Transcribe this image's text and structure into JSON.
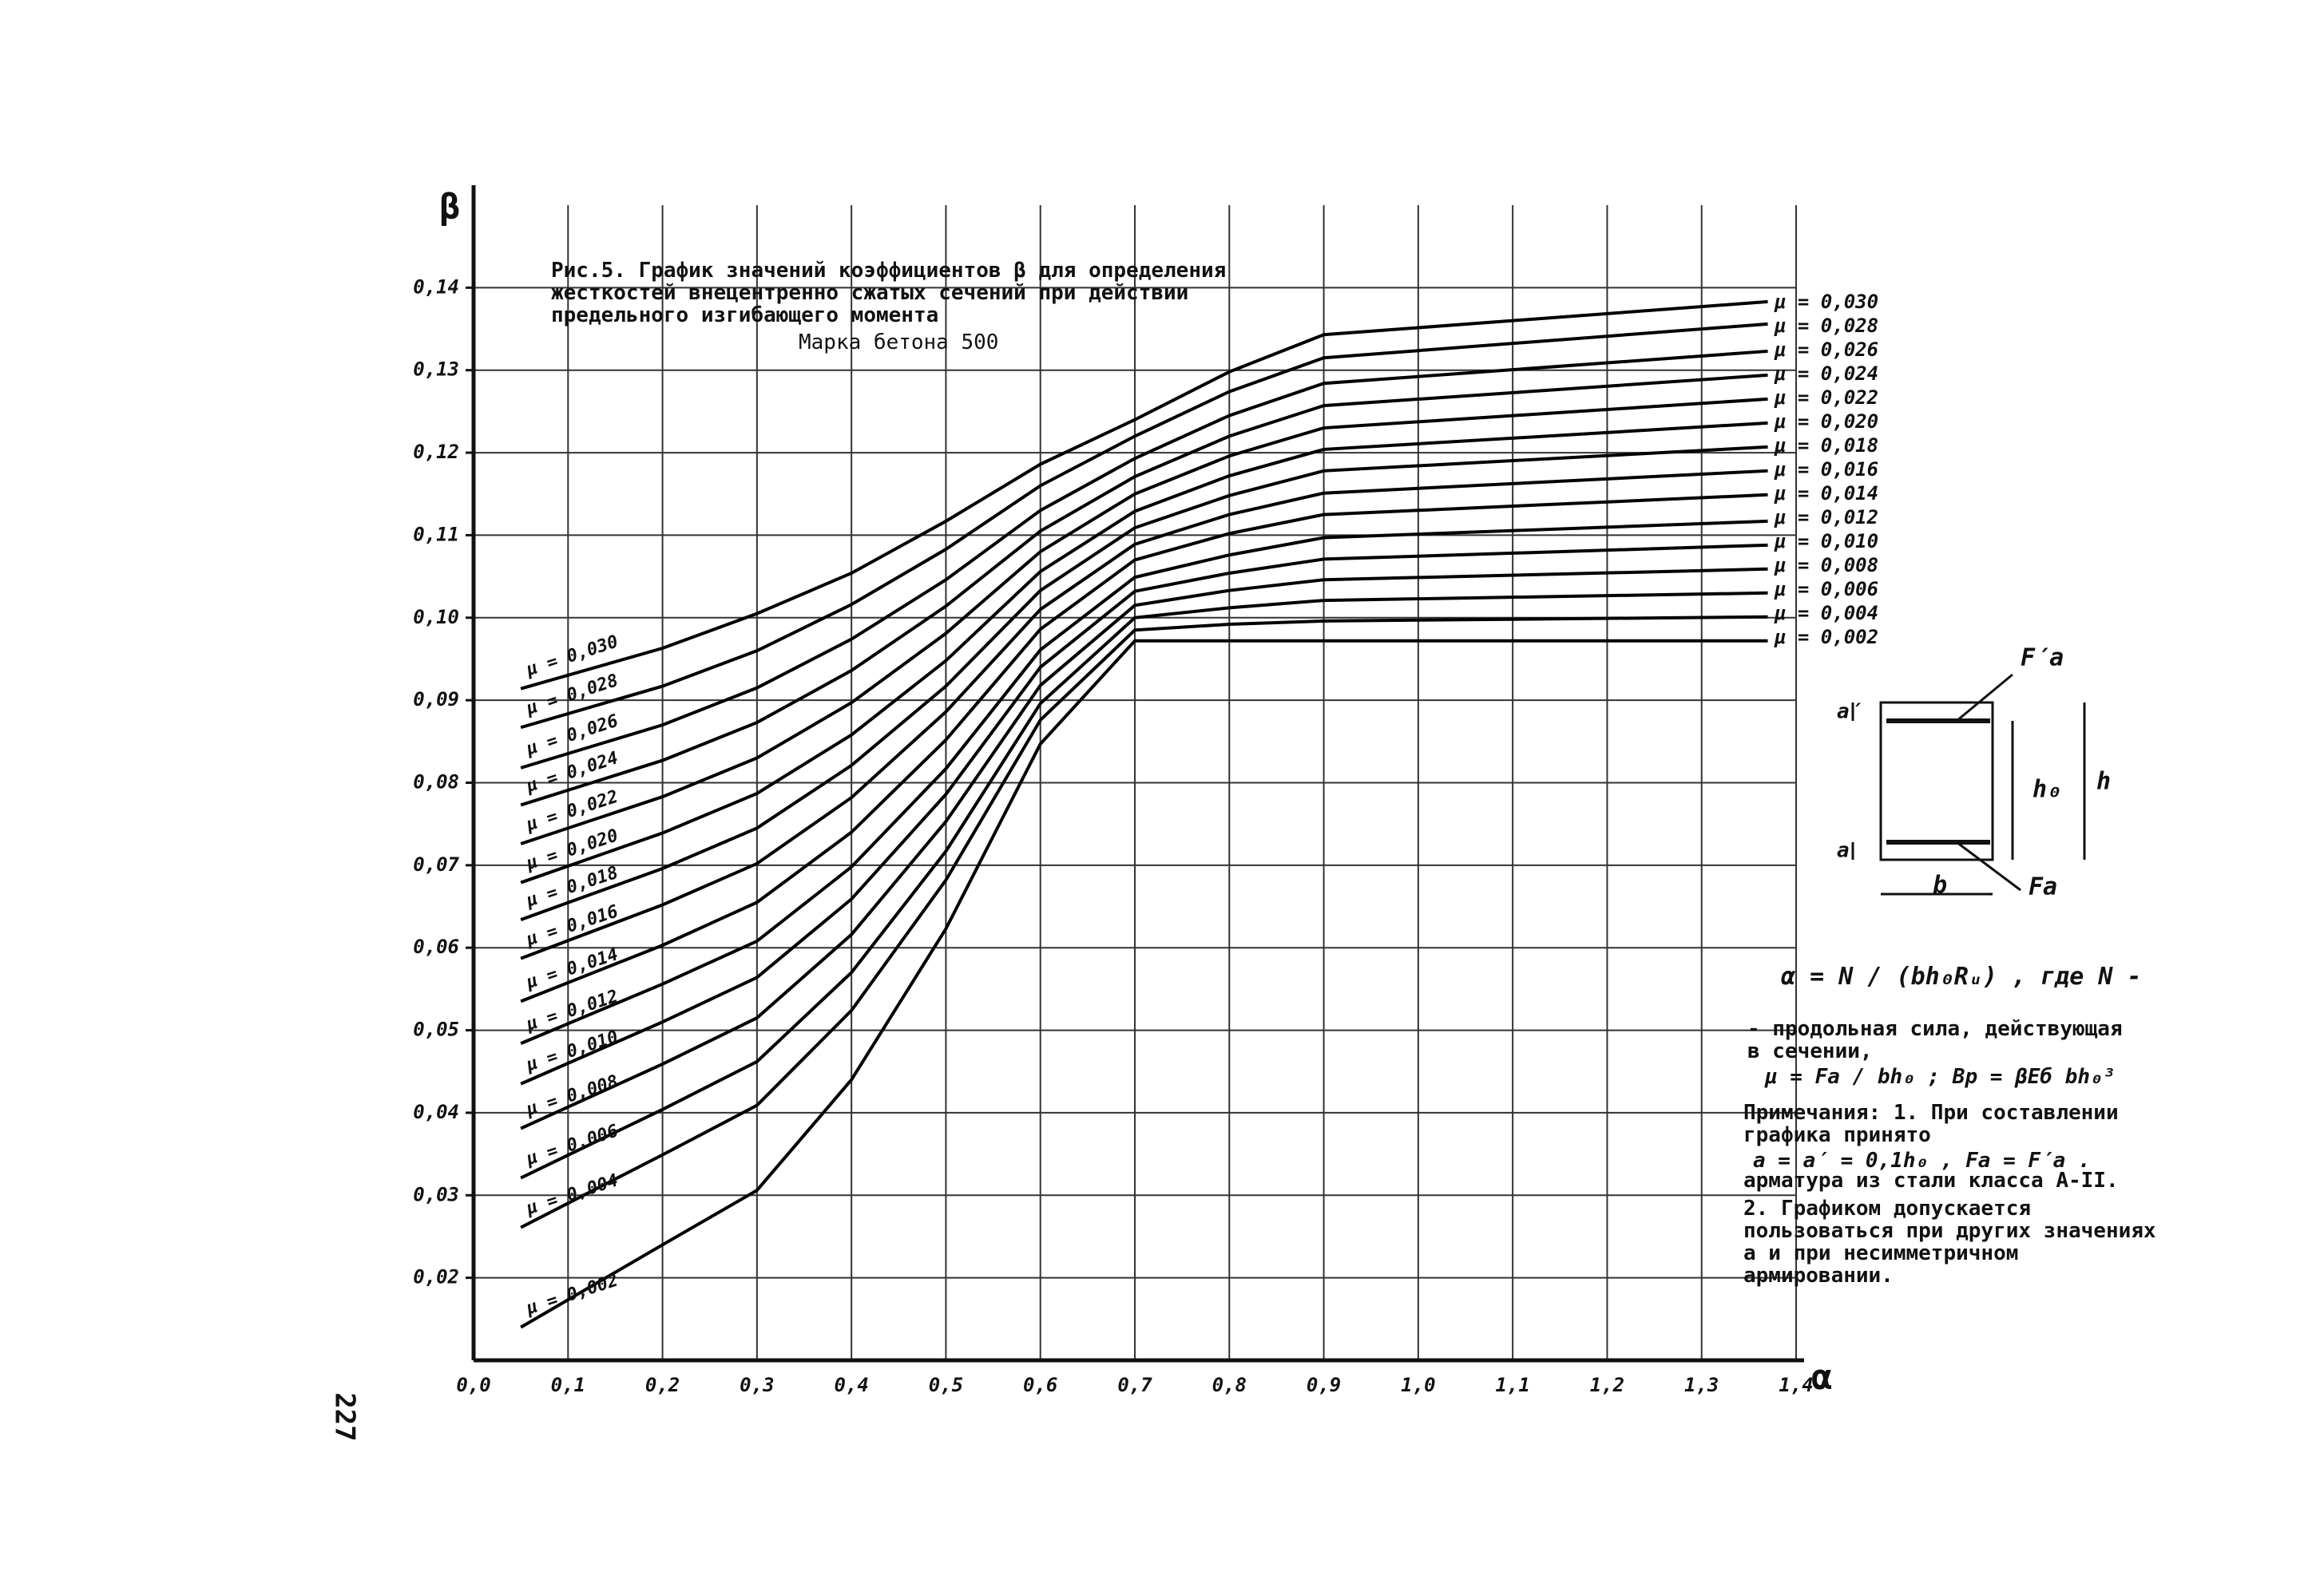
{
  "chart_data": {
    "type": "line",
    "title": "Рис.5. График значений коэффициентов β для определения жесткостей внецентренно сжатых сечений при действии предельного изгибающего момента",
    "subtitle": "Марка бетона 500",
    "xlabel": "α",
    "ylabel": "β",
    "color": "#000000",
    "grid": true,
    "xlim": [
      0,
      1.4
    ],
    "ylim": [
      0.01,
      0.15
    ],
    "xticks": [
      {
        "value": 0,
        "label": "0,0"
      },
      {
        "value": 0.1,
        "label": "0,1"
      },
      {
        "value": 0.2,
        "label": "0,2"
      },
      {
        "value": 0.3,
        "label": "0,3"
      },
      {
        "value": 0.4,
        "label": "0,4"
      },
      {
        "value": 0.5,
        "label": "0,5"
      },
      {
        "value": 0.6,
        "label": "0,6"
      },
      {
        "value": 0.7,
        "label": "0,7"
      },
      {
        "value": 0.8,
        "label": "0,8"
      },
      {
        "value": 0.9,
        "label": "0,9"
      },
      {
        "value": 1,
        "label": "1,0"
      },
      {
        "value": 1.1,
        "label": "1,1"
      },
      {
        "value": 1.2,
        "label": "1,2"
      },
      {
        "value": 1.3,
        "label": "1,3"
      },
      {
        "value": 1.4,
        "label": "1,4"
      }
    ],
    "yticks": [
      {
        "value": 0.02,
        "label": "0,02"
      },
      {
        "value": 0.03,
        "label": "0,03"
      },
      {
        "value": 0.04,
        "label": "0,04"
      },
      {
        "value": 0.05,
        "label": "0,05"
      },
      {
        "value": 0.06,
        "label": "0,06"
      },
      {
        "value": 0.07,
        "label": "0,07"
      },
      {
        "value": 0.08,
        "label": "0,08"
      },
      {
        "value": 0.09,
        "label": "0,09"
      },
      {
        "value": 0.1,
        "label": "0,10"
      },
      {
        "value": 0.11,
        "label": "0,11"
      },
      {
        "value": 0.12,
        "label": "0,12"
      },
      {
        "value": 0.13,
        "label": "0,13"
      },
      {
        "value": 0.14,
        "label": "0,14"
      }
    ],
    "x": [
      0.05,
      0.2,
      0.3,
      0.4,
      0.5,
      0.6,
      0.7,
      0.8,
      0.9,
      1.37
    ],
    "series": [
      {
        "name": "μ = 0,002",
        "values": [
          0.014,
          0.024,
          0.0306,
          0.044,
          0.0623,
          0.0847,
          0.0972,
          0.0972,
          0.0972,
          0.0972
        ]
      },
      {
        "name": "μ = 0,004",
        "values": [
          0.0261,
          0.0349,
          0.0409,
          0.0524,
          0.0682,
          0.0876,
          0.0985,
          0.0992,
          0.0996,
          0.1001
        ]
      },
      {
        "name": "μ = 0,006",
        "values": [
          0.0321,
          0.0404,
          0.0462,
          0.057,
          0.0717,
          0.0896,
          0.1,
          0.1012,
          0.1021,
          0.103
        ]
      },
      {
        "name": "μ = 0,008",
        "values": [
          0.0381,
          0.0459,
          0.0515,
          0.0616,
          0.0753,
          0.0918,
          0.1015,
          0.1033,
          0.1046,
          0.1059
        ]
      },
      {
        "name": "μ = 0,010",
        "values": [
          0.0435,
          0.051,
          0.0564,
          0.0659,
          0.0786,
          0.094,
          0.1032,
          0.1054,
          0.1071,
          0.1088
        ]
      },
      {
        "name": "μ = 0,012",
        "values": [
          0.0484,
          0.0556,
          0.0608,
          0.0698,
          0.0817,
          0.0961,
          0.1049,
          0.1076,
          0.1097,
          0.1117
        ]
      },
      {
        "name": "μ = 0,014",
        "values": [
          0.0535,
          0.0603,
          0.0655,
          0.074,
          0.0852,
          0.0986,
          0.107,
          0.1102,
          0.1125,
          0.1149
        ]
      },
      {
        "name": "μ = 0,016",
        "values": [
          0.0587,
          0.0652,
          0.0702,
          0.0782,
          0.0886,
          0.101,
          0.1089,
          0.1125,
          0.1151,
          0.1178
        ]
      },
      {
        "name": "μ = 0,018",
        "values": [
          0.0634,
          0.0696,
          0.0745,
          0.0821,
          0.0917,
          0.1033,
          0.1109,
          0.1148,
          0.1178,
          0.1207
        ]
      },
      {
        "name": "μ = 0,020",
        "values": [
          0.0679,
          0.0739,
          0.0787,
          0.0858,
          0.0948,
          0.1056,
          0.1129,
          0.1172,
          0.1204,
          0.1236
        ]
      },
      {
        "name": "μ = 0,022",
        "values": [
          0.0726,
          0.0783,
          0.083,
          0.0897,
          0.0981,
          0.108,
          0.115,
          0.1196,
          0.123,
          0.1265
        ]
      },
      {
        "name": "μ = 0,024",
        "values": [
          0.0773,
          0.0827,
          0.0873,
          0.0936,
          0.1014,
          0.1105,
          0.1171,
          0.122,
          0.1257,
          0.1294
        ]
      },
      {
        "name": "μ = 0,026",
        "values": [
          0.0818,
          0.087,
          0.0915,
          0.0974,
          0.1046,
          0.113,
          0.1193,
          0.1245,
          0.1284,
          0.1323
        ]
      },
      {
        "name": "μ = 0,028",
        "values": [
          0.0867,
          0.0917,
          0.096,
          0.1016,
          0.1083,
          0.116,
          0.122,
          0.1274,
          0.1315,
          0.1356
        ]
      },
      {
        "name": "μ = 0,030",
        "values": [
          0.0914,
          0.0963,
          0.1005,
          0.1054,
          0.1117,
          0.1186,
          0.124,
          0.1298,
          0.1343,
          0.1383
        ]
      }
    ]
  },
  "formula": {
    "line1": "α = N / (bh₀Rᵤ) , где N -",
    "line2": "- продольная сила, действующая в сечении,",
    "line3": "μ = Fa / bh₀ ;  Bр = βEб bh₀³"
  },
  "notes": {
    "line1": "Примечания: 1. При составлении графика принято",
    "line2": "a = a′ = 0,1h₀ ,  Fa = F′a .",
    "line3": "арматура из стали класса А-II.",
    "line4": "2. Графиком допускается пользоваться при других значениях a и при несимметричном армировании."
  },
  "diagram": {
    "fa_top": "F′a",
    "a_top": "a′",
    "h0": "h₀",
    "h": "h",
    "a_bottom": "a",
    "b": "b",
    "fa_bottom": "Fa"
  },
  "page_number": "227"
}
